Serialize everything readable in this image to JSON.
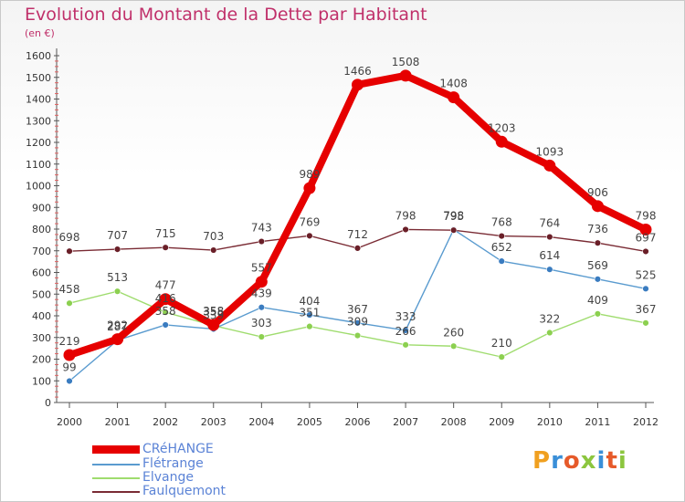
{
  "title": "Evolution du Montant de la Dette par Habitant",
  "unit_label": "(en €)",
  "logo_text": "Proxiti",
  "chart_data": {
    "type": "line",
    "title": "Evolution du Montant de la Dette par Habitant",
    "ylabel": "(en €)",
    "xlabel": "",
    "x": [
      "2000",
      "2001",
      "2002",
      "2003",
      "2004",
      "2005",
      "2006",
      "2007",
      "2008",
      "2009",
      "2010",
      "2011",
      "2012"
    ],
    "ylim": [
      0,
      1600
    ],
    "yticks": [
      "0",
      "100",
      "200",
      "300",
      "400",
      "500",
      "600",
      "700",
      "800",
      "900",
      "1000",
      "1100",
      "1200",
      "1300",
      "1400",
      "1500",
      "1600"
    ],
    "grid": false,
    "legend": "bottom-left",
    "series": [
      {
        "name": "CRéHANGE",
        "color": "#e60000",
        "values": [
          219,
          292,
          477,
          358,
          557,
          989,
          1466,
          1508,
          1408,
          1203,
          1093,
          906,
          798
        ]
      },
      {
        "name": "Flétrange",
        "color": "#5a9bcf",
        "values": [
          99,
          287,
          358,
          339,
          439,
          404,
          367,
          333,
          798,
          652,
          614,
          569,
          525
        ]
      },
      {
        "name": "Elvange",
        "color": "#9fdc6e",
        "values": [
          458,
          513,
          416,
          355,
          303,
          351,
          309,
          266,
          260,
          210,
          322,
          409,
          367
        ]
      },
      {
        "name": "Faulquemont",
        "color": "#7a2b34",
        "values": [
          698,
          707,
          715,
          703,
          743,
          769,
          712,
          798,
          795,
          768,
          764,
          736,
          697
        ]
      }
    ]
  }
}
